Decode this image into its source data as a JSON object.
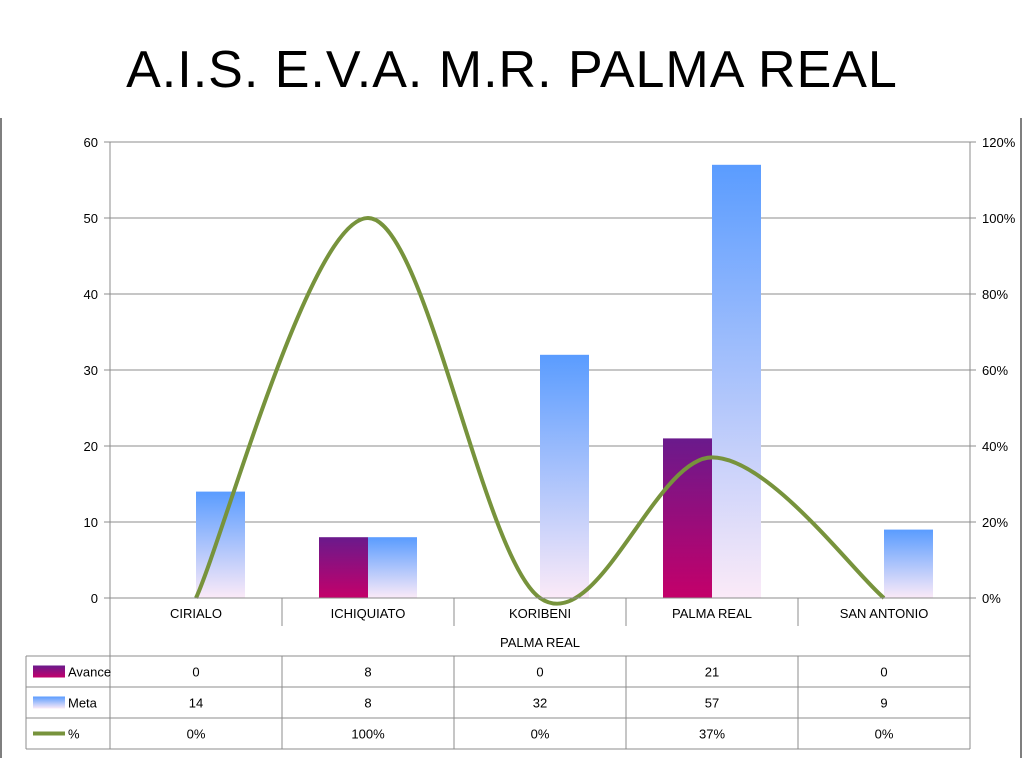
{
  "title": "A.I.S.  E.V.A.  M.R. PALMA REAL",
  "chart_data": {
    "type": "bar",
    "categories": [
      "CIRIALO",
      "ICHIQUIATO",
      "KORIBENI",
      "PALMA REAL",
      "SAN ANTONIO"
    ],
    "group_label": "PALMA REAL",
    "series": [
      {
        "name": "Avance",
        "kind": "bar",
        "axis": "left",
        "values": [
          0,
          8,
          0,
          21,
          0
        ],
        "display": [
          "0",
          "8",
          "0",
          "21",
          "0"
        ],
        "color_top": "#6a1a8c",
        "color_bottom": "#c4006a"
      },
      {
        "name": "Meta",
        "kind": "bar",
        "axis": "left",
        "values": [
          14,
          8,
          32,
          57,
          9
        ],
        "display": [
          "14",
          "8",
          "32",
          "57",
          "9"
        ],
        "color_top": "#5a9cff",
        "color_bottom": "#fbeaf8"
      },
      {
        "name": "%",
        "kind": "line",
        "axis": "right",
        "values": [
          0,
          100,
          0,
          37,
          0
        ],
        "display": [
          "0%",
          "100%",
          "0%",
          "37%",
          "0%"
        ],
        "color": "#77933c"
      }
    ],
    "y_left": {
      "min": 0,
      "max": 60,
      "ticks": [
        "0",
        "10",
        "20",
        "30",
        "40",
        "50",
        "60"
      ]
    },
    "y_right": {
      "min": 0,
      "max": 120,
      "ticks": [
        "0%",
        "20%",
        "40%",
        "60%",
        "80%",
        "100%",
        "120%"
      ]
    },
    "grid": true,
    "legend": "data-table"
  }
}
